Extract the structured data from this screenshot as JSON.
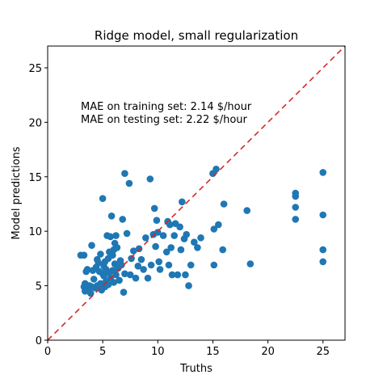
{
  "chart_data": {
    "type": "scatter",
    "title": "Ridge model, small regularization",
    "xlabel": "Truths",
    "ylabel": "Model predictions",
    "xlim": [
      0,
      27
    ],
    "ylim": [
      0,
      27
    ],
    "xticks": [
      0,
      5,
      10,
      15,
      20,
      25
    ],
    "yticks": [
      0,
      5,
      10,
      15,
      20,
      25
    ],
    "grid": false,
    "point_color": "#1f77b4",
    "reference_line": {
      "from": [
        0,
        0
      ],
      "to": [
        27,
        27
      ],
      "color": "#d62728",
      "style": "dashed"
    },
    "annotations": [
      "MAE on training set: 2.14 $/hour",
      "MAE on testing set: 2.22 $/hour"
    ],
    "points": [
      [
        3.0,
        7.8
      ],
      [
        3.3,
        7.8
      ],
      [
        3.3,
        4.9
      ],
      [
        3.4,
        4.5
      ],
      [
        3.4,
        5.2
      ],
      [
        3.5,
        6.3
      ],
      [
        3.6,
        6.5
      ],
      [
        3.7,
        4.6
      ],
      [
        3.8,
        5.0
      ],
      [
        3.9,
        4.3
      ],
      [
        4.0,
        8.7
      ],
      [
        4.0,
        4.9
      ],
      [
        4.1,
        6.4
      ],
      [
        4.2,
        5.6
      ],
      [
        4.3,
        4.8
      ],
      [
        4.4,
        6.7
      ],
      [
        4.5,
        7.4
      ],
      [
        4.5,
        5.0
      ],
      [
        4.6,
        7.1
      ],
      [
        4.7,
        6.3
      ],
      [
        4.8,
        5.2
      ],
      [
        4.8,
        7.9
      ],
      [
        4.9,
        4.6
      ],
      [
        5.0,
        13.0
      ],
      [
        5.0,
        6.1
      ],
      [
        5.1,
        6.8
      ],
      [
        5.1,
        5.9
      ],
      [
        5.2,
        7.2
      ],
      [
        5.2,
        4.9
      ],
      [
        5.3,
        5.4
      ],
      [
        5.3,
        6.5
      ],
      [
        5.4,
        9.6
      ],
      [
        5.5,
        7.5
      ],
      [
        5.5,
        5.1
      ],
      [
        5.6,
        8.1
      ],
      [
        5.6,
        6.2
      ],
      [
        5.7,
        9.5
      ],
      [
        5.7,
        5.7
      ],
      [
        5.8,
        11.4
      ],
      [
        5.9,
        7.8
      ],
      [
        5.9,
        6.4
      ],
      [
        6.0,
        8.3
      ],
      [
        6.0,
        5.3
      ],
      [
        6.1,
        7.0
      ],
      [
        6.1,
        8.9
      ],
      [
        6.2,
        6.0
      ],
      [
        6.2,
        9.6
      ],
      [
        6.3,
        8.5
      ],
      [
        6.4,
        6.6
      ],
      [
        6.5,
        5.5
      ],
      [
        6.6,
        7.3
      ],
      [
        6.7,
        6.9
      ],
      [
        6.8,
        11.1
      ],
      [
        6.9,
        4.4
      ],
      [
        7.0,
        15.3
      ],
      [
        7.0,
        6.1
      ],
      [
        7.2,
        9.8
      ],
      [
        7.4,
        14.4
      ],
      [
        7.5,
        6.0
      ],
      [
        7.6,
        7.5
      ],
      [
        7.8,
        8.2
      ],
      [
        8.0,
        5.7
      ],
      [
        8.2,
        6.8
      ],
      [
        8.3,
        8.4
      ],
      [
        8.5,
        7.4
      ],
      [
        8.7,
        6.5
      ],
      [
        8.9,
        9.4
      ],
      [
        9.1,
        5.7
      ],
      [
        9.3,
        14.8
      ],
      [
        9.4,
        6.9
      ],
      [
        9.6,
        9.7
      ],
      [
        9.7,
        12.1
      ],
      [
        9.8,
        8.6
      ],
      [
        9.9,
        11.0
      ],
      [
        10.0,
        9.9
      ],
      [
        10.1,
        7.2
      ],
      [
        10.2,
        6.5
      ],
      [
        10.5,
        9.6
      ],
      [
        10.8,
        8.1
      ],
      [
        10.9,
        10.9
      ],
      [
        11.0,
        6.9
      ],
      [
        11.1,
        10.6
      ],
      [
        11.2,
        8.5
      ],
      [
        11.3,
        6.0
      ],
      [
        11.5,
        9.6
      ],
      [
        11.6,
        10.7
      ],
      [
        11.8,
        6.0
      ],
      [
        12.0,
        10.4
      ],
      [
        12.1,
        8.3
      ],
      [
        12.2,
        12.7
      ],
      [
        12.4,
        9.3
      ],
      [
        12.5,
        6.0
      ],
      [
        12.6,
        9.7
      ],
      [
        12.8,
        5.0
      ],
      [
        13.0,
        6.9
      ],
      [
        13.3,
        9.0
      ],
      [
        13.6,
        8.5
      ],
      [
        13.9,
        9.4
      ],
      [
        15.0,
        15.3
      ],
      [
        15.1,
        6.9
      ],
      [
        15.1,
        10.2
      ],
      [
        15.3,
        15.7
      ],
      [
        15.5,
        10.6
      ],
      [
        15.9,
        8.3
      ],
      [
        16.0,
        12.5
      ],
      [
        18.1,
        11.9
      ],
      [
        18.4,
        7.0
      ],
      [
        22.5,
        13.5
      ],
      [
        22.5,
        13.2
      ],
      [
        22.5,
        12.2
      ],
      [
        22.5,
        11.1
      ],
      [
        25.0,
        15.4
      ],
      [
        25.0,
        11.5
      ],
      [
        25.0,
        8.3
      ],
      [
        25.0,
        7.2
      ]
    ]
  }
}
